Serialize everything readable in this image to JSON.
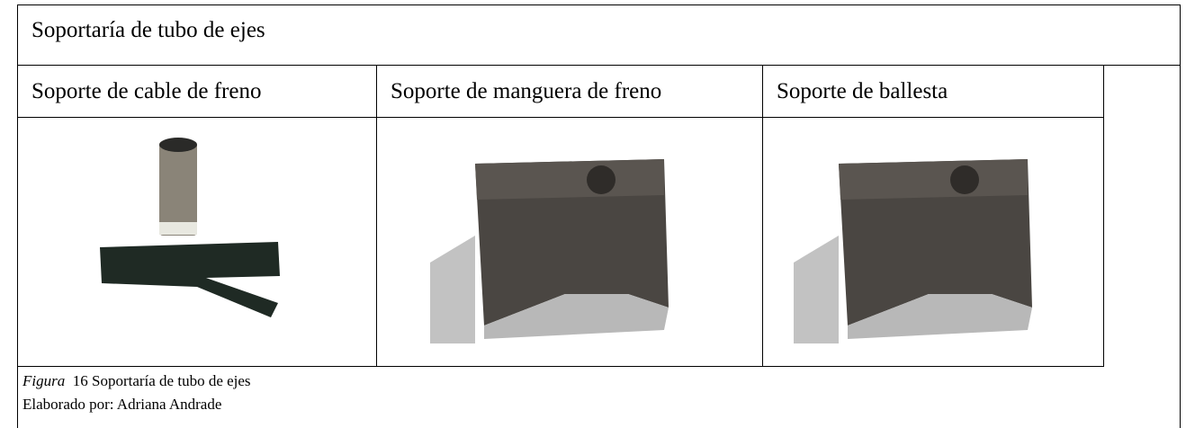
{
  "title": "Soportaría de tubo de ejes",
  "table": {
    "headers": [
      "Soporte de cable de freno",
      "Soporte de manguera de freno",
      "Soporte de ballesta"
    ]
  },
  "caption": {
    "label": "Figura",
    "number": 16,
    "text": "Soportaría de tubo de ejes"
  },
  "credit": "Elaborado por: Adriana Andrade"
}
